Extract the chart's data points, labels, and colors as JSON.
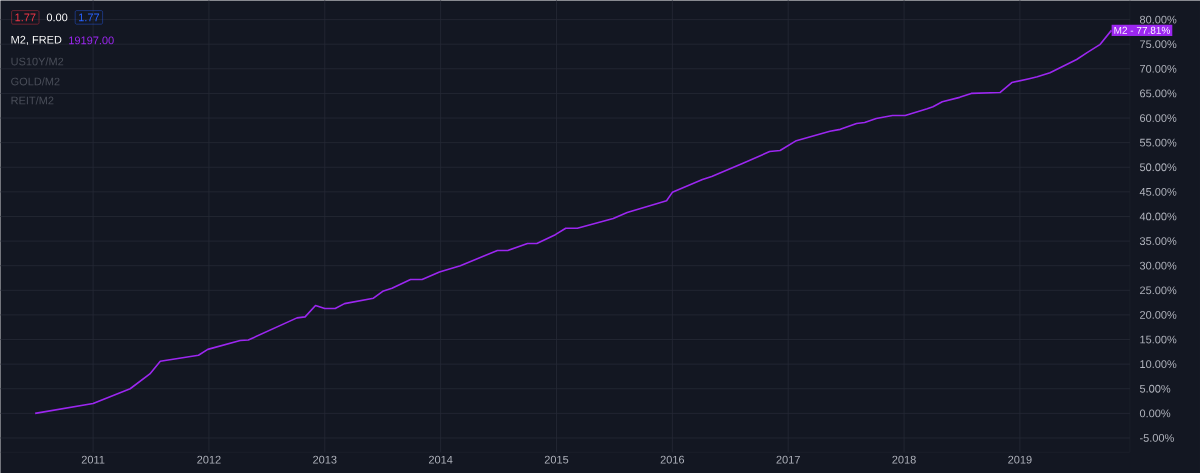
{
  "chart_data": {
    "type": "line",
    "x": [
      2010.5,
      2011.0,
      2011.32,
      2011.49,
      2011.58,
      2011.91,
      2011.99,
      2012.27,
      2012.34,
      2012.76,
      2012.83,
      2012.92,
      2013.0,
      2013.09,
      2013.17,
      2013.42,
      2013.5,
      2013.58,
      2013.74,
      2013.84,
      2013.99,
      2014.17,
      2014.49,
      2014.58,
      2014.75,
      2014.83,
      2014.99,
      2015.08,
      2015.18,
      2015.49,
      2015.61,
      2015.95,
      2016.0,
      2016.26,
      2016.34,
      2016.61,
      2016.84,
      2016.93,
      2017.07,
      2017.36,
      2017.45,
      2017.59,
      2017.66,
      2017.76,
      2017.9,
      2018.01,
      2018.2,
      2018.25,
      2018.33,
      2018.48,
      2018.58,
      2018.83,
      2018.93,
      2019.08,
      2019.15,
      2019.26,
      2019.49,
      2019.58,
      2019.69,
      2019.79
    ],
    "series": [
      {
        "name": "M2, FRED",
        "color": "#9c27f0",
        "values": [
          0,
          2.0,
          5.0,
          8.0,
          10.6,
          11.8,
          13.0,
          14.8,
          14.9,
          19.4,
          19.6,
          21.9,
          21.3,
          21.3,
          22.3,
          23.4,
          24.8,
          25.4,
          27.2,
          27.2,
          28.7,
          30.0,
          33.1,
          33.1,
          34.5,
          34.5,
          36.3,
          37.6,
          37.6,
          39.6,
          40.8,
          43.2,
          44.9,
          47.5,
          48.1,
          50.8,
          53.2,
          53.4,
          55.4,
          57.3,
          57.7,
          58.9,
          59.1,
          59.9,
          60.5,
          60.5,
          61.9,
          62.3,
          63.3,
          64.2,
          65.0,
          65.2,
          67.2,
          68.0,
          68.4,
          69.2,
          71.9,
          73.3,
          74.9,
          77.81
        ]
      }
    ],
    "xlim": [
      2010.2,
      2019.95
    ],
    "ylim": [
      -7.9,
      83.9
    ],
    "xticks": [
      2011,
      2012,
      2013,
      2014,
      2015,
      2016,
      2017,
      2018,
      2019
    ],
    "yticks": [
      {
        "value": -5,
        "label": "-5.00%"
      },
      {
        "value": 0,
        "label": "0.00%"
      },
      {
        "value": 5,
        "label": "5.00%"
      },
      {
        "value": 10,
        "label": "10.00%"
      },
      {
        "value": 15,
        "label": "15.00%"
      },
      {
        "value": 20,
        "label": "20.00%"
      },
      {
        "value": 25,
        "label": "25.00%"
      },
      {
        "value": 30,
        "label": "30.00%"
      },
      {
        "value": 35,
        "label": "35.00%"
      },
      {
        "value": 40,
        "label": "40.00%"
      },
      {
        "value": 45,
        "label": "45.00%"
      },
      {
        "value": 50,
        "label": "50.00%"
      },
      {
        "value": 55,
        "label": "55.00%"
      },
      {
        "value": 60,
        "label": "60.00%"
      },
      {
        "value": 65,
        "label": "65.00%"
      },
      {
        "value": 70,
        "label": "70.00%"
      },
      {
        "value": 75,
        "label": "75.00%"
      },
      {
        "value": 80,
        "label": "80.00%"
      }
    ],
    "grid": true,
    "legend": "top left",
    "marker": "none",
    "line_style": "solid",
    "annotations": [
      "1.77",
      "0.00",
      "1.77",
      "19197.00",
      "US10Y/M2",
      "GOLD/M2",
      "REIT/M2",
      {
        "text": "M2 - 77.81%",
        "x": 2019.79,
        "y": 77.81
      }
    ]
  }
}
